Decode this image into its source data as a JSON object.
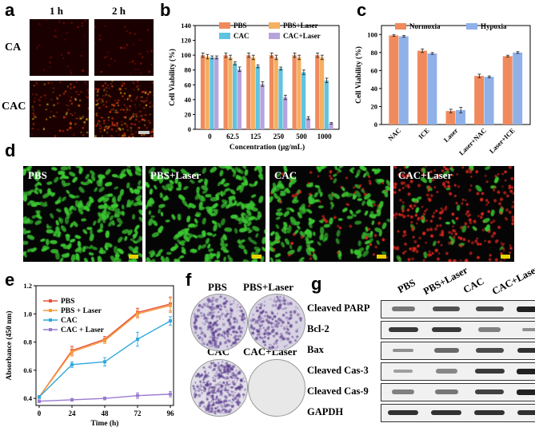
{
  "panels": {
    "a": {
      "letter": "a",
      "col_labels": [
        "1 h",
        "2 h"
      ],
      "row_labels": [
        "CA",
        "CAC"
      ]
    },
    "b": {
      "letter": "b"
    },
    "c": {
      "letter": "c"
    },
    "d": {
      "letter": "d",
      "labels": [
        "PBS",
        "PBS+Laser",
        "CAC",
        "CAC+Laser"
      ]
    },
    "e": {
      "letter": "e"
    },
    "f": {
      "letter": "f",
      "labels": [
        "PBS",
        "PBS+Laser",
        "CAC",
        "CAC+Laser"
      ]
    },
    "g": {
      "letter": "g",
      "columns": [
        "PBS",
        "PBS+Laser",
        "CAC",
        "CAC+Laser"
      ],
      "rows": [
        "Cleaved PARP",
        "Bcl-2",
        "Bax",
        "Cleaved Cas-3",
        "Cleaved  Cas-9",
        "GAPDH"
      ],
      "band_intensity": [
        [
          0.45,
          0.7,
          0.75,
          1.0
        ],
        [
          0.85,
          0.85,
          0.4,
          0.3
        ],
        [
          0.3,
          0.55,
          0.75,
          0.9
        ],
        [
          0.2,
          0.35,
          0.85,
          1.0
        ],
        [
          0.4,
          0.45,
          0.8,
          1.0
        ],
        [
          0.9,
          0.9,
          0.9,
          0.9
        ]
      ]
    }
  },
  "chart_data": [
    {
      "type": "bar",
      "panel": "b",
      "categories": [
        "0",
        "62.5",
        "125",
        "250",
        "500",
        "1000"
      ],
      "series": [
        {
          "name": "PBS",
          "color": "#f08a5d",
          "values": [
            100,
            100,
            100,
            100,
            100,
            100
          ],
          "errors": [
            3,
            3,
            3,
            3,
            3,
            3
          ]
        },
        {
          "name": "PBS+Laser",
          "color": "#f5b060",
          "values": [
            98,
            97,
            97,
            97,
            97,
            97
          ],
          "errors": [
            3,
            3,
            3,
            3,
            3,
            3
          ]
        },
        {
          "name": "CAC",
          "color": "#5ec4e0",
          "values": [
            97,
            89,
            85,
            82,
            77,
            66
          ],
          "errors": [
            2,
            2,
            2,
            2,
            3,
            3
          ]
        },
        {
          "name": "CAC+Laser",
          "color": "#b7a3dc",
          "values": [
            97,
            81,
            61,
            43,
            15,
            8
          ],
          "errors": [
            2,
            3,
            3,
            3,
            2,
            1
          ]
        }
      ],
      "xlabel": "Concentration (μg/mL)",
      "ylabel": "Cell Viability (%)",
      "ylim": [
        0,
        140
      ],
      "yticks": [
        0,
        20,
        40,
        60,
        80,
        100,
        120,
        140
      ],
      "legend": "top"
    },
    {
      "type": "bar",
      "panel": "c",
      "categories": [
        "NAC",
        "ICE",
        "Laser",
        "Laser+NAC",
        "Laser+ICE"
      ],
      "series": [
        {
          "name": "Normoxia",
          "color": "#f08a5d",
          "values": [
            99,
            82,
            15,
            54,
            76
          ],
          "errors": [
            1,
            2,
            2,
            2,
            1
          ]
        },
        {
          "name": "Hypoxia",
          "color": "#8fb0e8",
          "values": [
            98,
            79,
            16,
            53,
            80
          ],
          "errors": [
            1,
            1,
            3,
            1,
            1
          ]
        }
      ],
      "ylabel": "Cell Viability (%)",
      "ylim": [
        0,
        110
      ],
      "yticks": [
        0,
        20,
        40,
        60,
        80,
        100
      ],
      "legend": "top"
    },
    {
      "type": "line",
      "panel": "e",
      "x": [
        0,
        24,
        48,
        72,
        96
      ],
      "series": [
        {
          "name": "PBS",
          "color": "#e8503a",
          "values": [
            0.41,
            0.74,
            0.82,
            1.01,
            1.07
          ],
          "errors": [
            0.01,
            0.03,
            0.02,
            0.03,
            0.05
          ]
        },
        {
          "name": "PBS + Laser",
          "color": "#f59a3a",
          "values": [
            0.41,
            0.73,
            0.81,
            1.0,
            1.06
          ],
          "errors": [
            0.01,
            0.03,
            0.02,
            0.03,
            0.05
          ]
        },
        {
          "name": "CAC",
          "color": "#2ea8dc",
          "values": [
            0.41,
            0.64,
            0.66,
            0.82,
            0.95
          ],
          "errors": [
            0.01,
            0.02,
            0.03,
            0.05,
            0.03
          ]
        },
        {
          "name": "CAC + Laser",
          "color": "#9a7ad0",
          "values": [
            0.38,
            0.39,
            0.4,
            0.42,
            0.43
          ],
          "errors": [
            0.01,
            0.01,
            0.01,
            0.02,
            0.02
          ]
        }
      ],
      "xlabel": "Time (h)",
      "ylabel": "Absorbance (450 nm)",
      "ylim": [
        0.35,
        1.2
      ],
      "xticks": [
        0,
        24,
        48,
        72,
        96
      ],
      "yticks": [
        0.4,
        0.6,
        0.8,
        1.0,
        1.2
      ],
      "legend": "top-left"
    }
  ]
}
